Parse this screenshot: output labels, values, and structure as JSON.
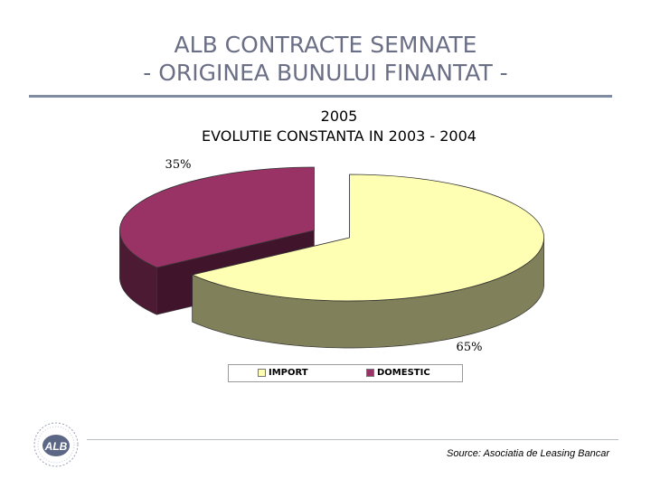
{
  "slide": {
    "title_line1": "ALB CONTRACTE SEMNATE",
    "title_line2": "- ORIGINEA BUNULUI FINANTAT -",
    "source": "Source: Asociatia de Leasing Bancar",
    "logo_text": "ALB"
  },
  "chart_data": {
    "type": "pie",
    "title_line1": "2005",
    "title_line2": "EVOLUTIE CONSTANTA IN 2003 - 2004",
    "categories": [
      "IMPORT",
      "DOMESTIC"
    ],
    "values": [
      65,
      35
    ],
    "data_labels": [
      "65%",
      "35%"
    ],
    "colors": [
      "#ffffb3",
      "#993366"
    ],
    "legend_position": "bottom",
    "exploded": true,
    "three_d": true
  }
}
